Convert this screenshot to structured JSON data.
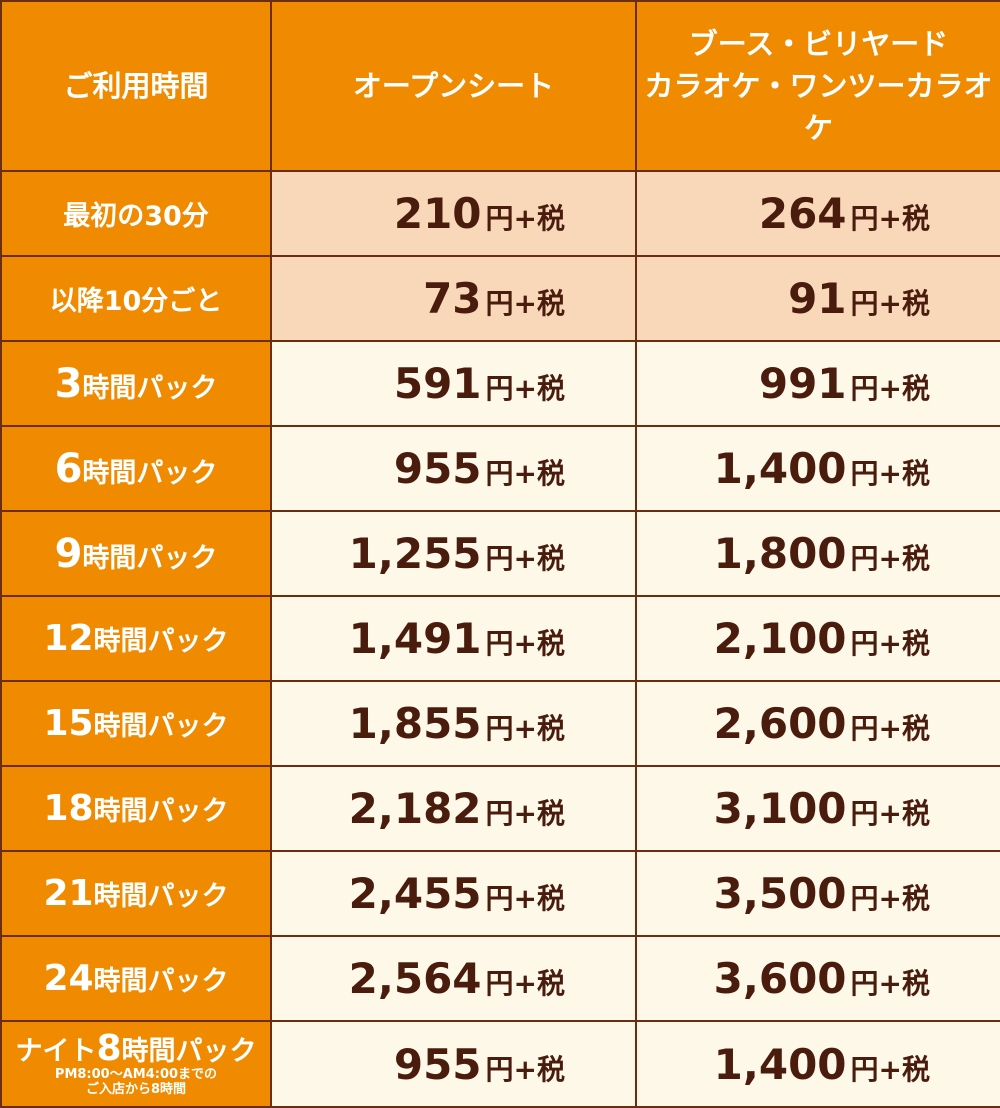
{
  "header": {
    "col1": "ご利用時間",
    "col2": "オープンシート",
    "col3_line1": "ブース・ビリヤード",
    "col3_line2": "カラオケ・ワンツーカラオケ"
  },
  "unit": "円+税",
  "rows": [
    {
      "label_num": "",
      "label_text": "最初の30分",
      "open": "210",
      "booth": "264"
    },
    {
      "label_num": "",
      "label_text": "以降10分ごと",
      "open": "73",
      "booth": "91"
    },
    {
      "label_num": "3",
      "label_text": "時間パック",
      "open": "591",
      "booth": "991"
    },
    {
      "label_num": "6",
      "label_text": "時間パック",
      "open": "955",
      "booth": "1,400"
    },
    {
      "label_num": "9",
      "label_text": "時間パック",
      "open": "1,255",
      "booth": "1,800"
    },
    {
      "label_num": "12",
      "label_text": "時間パック",
      "open": "1,491",
      "booth": "2,100"
    },
    {
      "label_num": "15",
      "label_text": "時間パック",
      "open": "1,855",
      "booth": "2,600"
    },
    {
      "label_num": "18",
      "label_text": "時間パック",
      "open": "2,182",
      "booth": "3,100"
    },
    {
      "label_num": "21",
      "label_text": "時間パック",
      "open": "2,455",
      "booth": "3,500"
    },
    {
      "label_num": "24",
      "label_text": "時間パック",
      "open": "2,564",
      "booth": "3,600"
    }
  ],
  "night": {
    "prefix": "ナイト",
    "num": "8",
    "suffix": "時間パック",
    "note_line1": "PM8:00〜AM4:00までの",
    "note_line2": "ご入店から8時間",
    "open": "955",
    "booth": "1,400"
  },
  "colors": {
    "header_orange": "#f08a00",
    "pink_cell": "#f9d8b9",
    "cream_cell": "#fef8e8",
    "price_text": "#4a1c0e",
    "border": "#6a2d10"
  }
}
